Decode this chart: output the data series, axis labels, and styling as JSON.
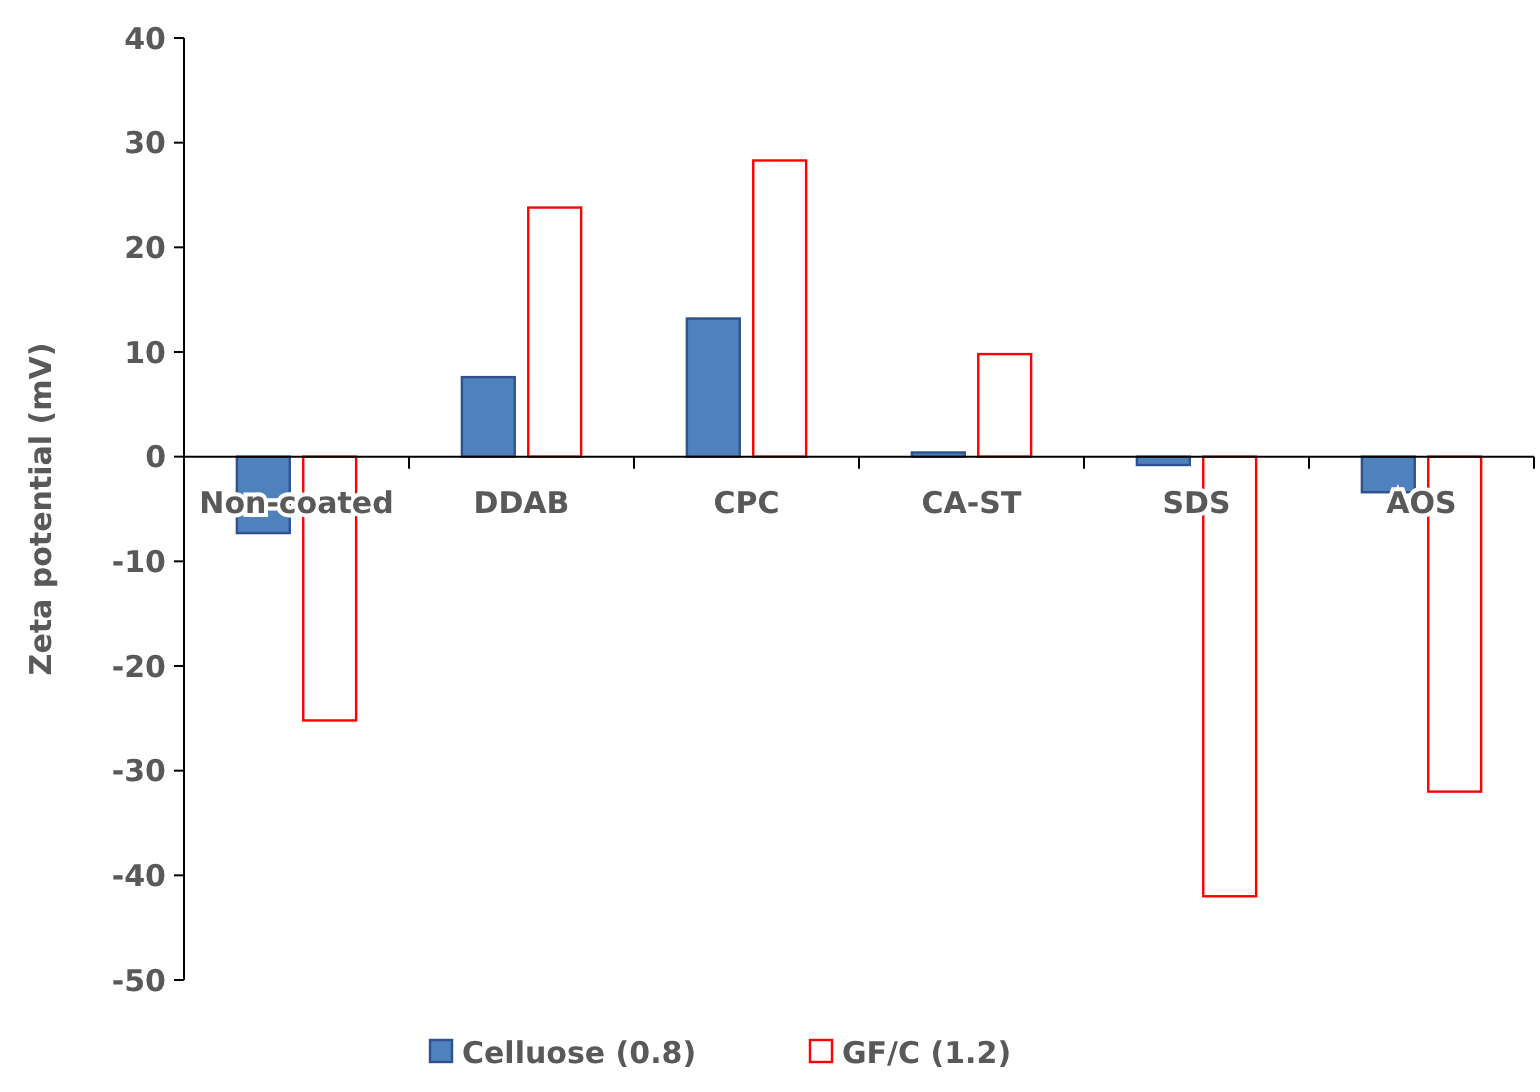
{
  "chart_data": {
    "type": "bar",
    "ylabel": "Zeta potential (mV)",
    "categories": [
      "Non-coated",
      "DDAB",
      "CPC",
      "CA-ST",
      "SDS",
      "AOS"
    ],
    "series": [
      {
        "name": "Celluose (0.8)",
        "color": "#4f81bd",
        "values": [
          -7.3,
          7.6,
          13.2,
          0.4,
          -0.8,
          -3.4
        ]
      },
      {
        "name": "GF/C (1.2)",
        "color": "#ff0000",
        "values": [
          -25.2,
          23.8,
          28.3,
          9.8,
          -42,
          -32
        ]
      }
    ],
    "ylim": [
      -50,
      40
    ],
    "yticks": [
      -50,
      -40,
      -30,
      -20,
      -10,
      0,
      10,
      20,
      30,
      40
    ],
    "grid": false,
    "legend": "bottom"
  }
}
